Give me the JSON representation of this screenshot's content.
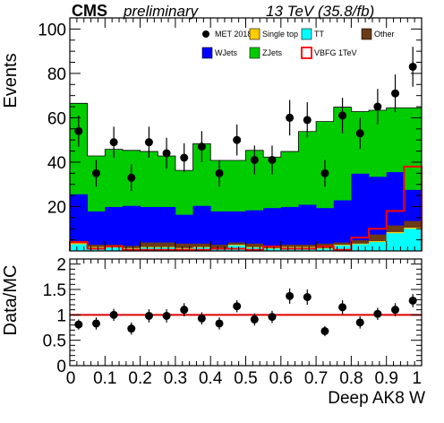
{
  "header": {
    "experiment": "CMS",
    "status": "preliminary",
    "energy": "13 TeV (35.8/fb)"
  },
  "chart_data": [
    {
      "type": "bar",
      "stacked": true,
      "xlabel": "Deep AK8 W",
      "ylabel": "Events",
      "xlim": [
        0,
        1
      ],
      "ylim": [
        0,
        105
      ],
      "yticks": [
        20,
        40,
        60,
        80,
        100
      ],
      "bin_edges": [
        0,
        0.05,
        0.1,
        0.15,
        0.2,
        0.25,
        0.3,
        0.35,
        0.4,
        0.45,
        0.5,
        0.55,
        0.6,
        0.65,
        0.7,
        0.75,
        0.8,
        0.85,
        0.9,
        0.95,
        1.0
      ],
      "legend": [
        {
          "label": "MET 2018",
          "style": "marker",
          "color": "#000000"
        },
        {
          "label": "Single top",
          "style": "fill",
          "color": "#ffcc00"
        },
        {
          "label": "TT",
          "style": "fill",
          "color": "#00ffff"
        },
        {
          "label": "Other",
          "style": "fill",
          "color": "#6b3a16"
        },
        {
          "label": "WJets",
          "style": "fill",
          "color": "#0000ff"
        },
        {
          "label": "ZJets",
          "style": "fill",
          "color": "#00cc00"
        },
        {
          "label": "VBFG 1TeV",
          "style": "line",
          "color": "#ff0000"
        }
      ],
      "stack": [
        {
          "name": "TT",
          "color": "#00ffff",
          "values": [
            3,
            1.5,
            1.5,
            1,
            1.5,
            1.5,
            1,
            1.5,
            1,
            2.5,
            1.5,
            1,
            1.5,
            1.5,
            1,
            2.5,
            3,
            4,
            8,
            10
          ]
        },
        {
          "name": "Single top",
          "color": "#ffcc00",
          "values": [
            0.5,
            0.3,
            0.3,
            0.3,
            0.3,
            0.3,
            0.3,
            0.3,
            0.3,
            0.3,
            0.3,
            0.3,
            0.3,
            0.3,
            0.3,
            0.3,
            0.3,
            0.4,
            0.5,
            0.5
          ]
        },
        {
          "name": "Other",
          "color": "#6b3a16",
          "values": [
            1,
            1,
            1,
            1,
            2,
            2,
            2,
            1.5,
            1.5,
            1,
            1.5,
            1,
            1,
            1,
            2,
            1,
            1.5,
            3,
            3,
            3
          ]
        },
        {
          "name": "WJets",
          "color": "#0000ff",
          "values": [
            21,
            15,
            17,
            18,
            16,
            16,
            13,
            17,
            15,
            14,
            15,
            17,
            17,
            18,
            16,
            19,
            30,
            26,
            24,
            14
          ]
        },
        {
          "name": "ZJets",
          "color": "#00cc00",
          "values": [
            41,
            25,
            26,
            25,
            25,
            23,
            20,
            28,
            23,
            23,
            27,
            23,
            25,
            33,
            39,
            42,
            28,
            30,
            29,
            37
          ]
        }
      ],
      "signal": {
        "name": "VBFG 1TeV",
        "color": "#ff0000",
        "values": [
          4,
          1,
          2,
          0.5,
          0.5,
          0.5,
          0.5,
          0.5,
          1,
          1,
          0.5,
          2,
          1,
          1,
          2,
          0.5,
          6,
          10,
          18,
          38
        ]
      },
      "data": {
        "name": "MET 2018",
        "values": [
          54,
          35,
          49,
          33,
          49,
          44,
          42,
          47,
          35,
          50,
          41,
          41,
          60,
          59,
          35,
          61,
          53,
          65,
          71,
          83
        ],
        "errors": [
          7,
          6,
          7,
          6,
          7,
          7,
          6.5,
          7,
          6,
          7,
          6.5,
          6.5,
          8,
          8,
          6,
          8,
          7,
          8,
          8.5,
          9
        ]
      }
    },
    {
      "type": "scatter",
      "xlabel": "Deep AK8 W",
      "ylabel": "Data/MC",
      "xlim": [
        0,
        1
      ],
      "ylim": [
        0,
        2.1
      ],
      "xticks": [
        "0",
        "0.1",
        "0.2",
        "0.3",
        "0.4",
        "0.5",
        "0.6",
        "0.7",
        "0.8",
        "0.9",
        "1"
      ],
      "yticks": [
        "0",
        "0.5",
        "1",
        "1.5",
        "2"
      ],
      "reference_line": 1,
      "x": [
        0.025,
        0.075,
        0.125,
        0.175,
        0.225,
        0.275,
        0.325,
        0.375,
        0.425,
        0.475,
        0.525,
        0.575,
        0.625,
        0.675,
        0.725,
        0.775,
        0.825,
        0.875,
        0.925,
        0.975
      ],
      "values": [
        0.81,
        0.83,
        1.0,
        0.73,
        0.98,
        0.98,
        1.1,
        0.93,
        0.83,
        1.17,
        0.91,
        0.96,
        1.37,
        1.35,
        0.68,
        1.15,
        0.85,
        1.02,
        1.1,
        1.28
      ],
      "errors": [
        0.1,
        0.12,
        0.12,
        0.12,
        0.13,
        0.13,
        0.13,
        0.12,
        0.12,
        0.12,
        0.12,
        0.12,
        0.15,
        0.15,
        0.1,
        0.14,
        0.12,
        0.12,
        0.13,
        0.13
      ]
    }
  ]
}
